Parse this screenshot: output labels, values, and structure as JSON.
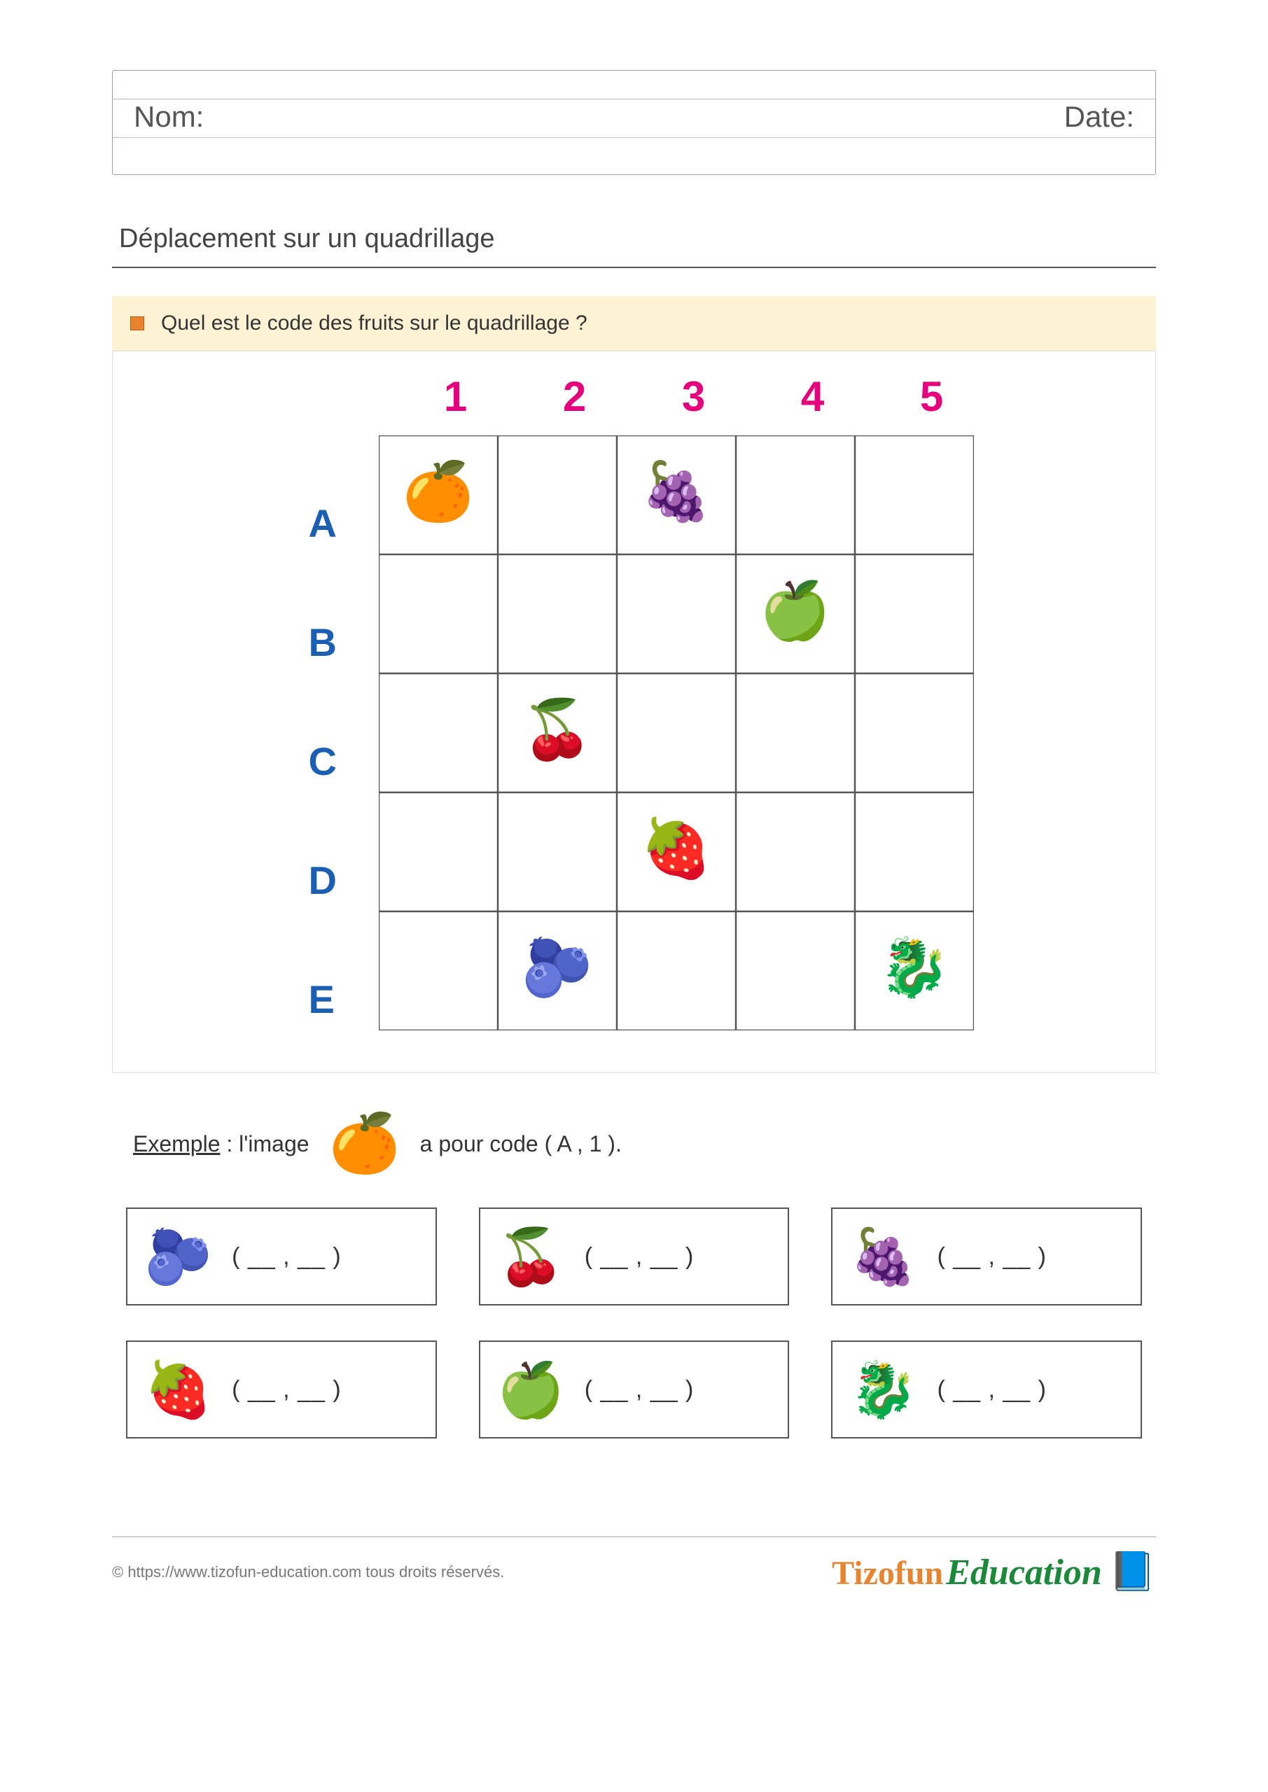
{
  "header": {
    "name_label": "Nom:",
    "date_label": "Date:",
    "border_color": "#9999cc",
    "line_color": "#b8b8dd"
  },
  "section_title": "Déplacement sur un quadrillage",
  "instruction": {
    "bullet_color": "#e8832e",
    "background": "#fdf3d4",
    "text": "Quel est le code des fruits sur le quadrillage ?"
  },
  "grid": {
    "cell_size": 170,
    "cols": 5,
    "rows": 5,
    "col_labels": [
      "1",
      "2",
      "3",
      "4",
      "5"
    ],
    "row_labels": [
      "A",
      "B",
      "C",
      "D",
      "E"
    ],
    "col_label_color": "#e6007e",
    "row_label_color": "#1a5fb4",
    "line_color": "#555555",
    "col_label_fontsize": 60,
    "row_label_fontsize": 56,
    "fruits": [
      {
        "name": "orange",
        "glyph": "🍊",
        "row": "A",
        "col": 1
      },
      {
        "name": "grapes",
        "glyph": "🍇",
        "row": "A",
        "col": 3
      },
      {
        "name": "green-apple",
        "glyph": "🍏",
        "row": "B",
        "col": 4
      },
      {
        "name": "cherries",
        "glyph": "🍒",
        "row": "C",
        "col": 2
      },
      {
        "name": "strawberry",
        "glyph": "🍓",
        "row": "D",
        "col": 3
      },
      {
        "name": "blackberry",
        "glyph": "🫐",
        "row": "E",
        "col": 2
      },
      {
        "name": "dragonfruit",
        "glyph": "🐉",
        "row": "E",
        "col": 5
      }
    ]
  },
  "example": {
    "prefix_bold": "Exemple",
    "prefix_rest": " : l'image",
    "fruit_glyph": "🍊",
    "fruit_name": "orange",
    "suffix": "a pour code (  A  ,  1  )."
  },
  "answers": [
    {
      "fruit_name": "blackberry",
      "glyph": "🫐",
      "blank": "( __ , __ )"
    },
    {
      "fruit_name": "cherries",
      "glyph": "🍒",
      "blank": "( __ , __ )"
    },
    {
      "fruit_name": "grapes",
      "glyph": "🍇",
      "blank": "( __ , __ )"
    },
    {
      "fruit_name": "strawberry",
      "glyph": "🍓",
      "blank": "( __ , __ )"
    },
    {
      "fruit_name": "green-apple",
      "glyph": "🍏",
      "blank": "( __ , __ )"
    },
    {
      "fruit_name": "dragonfruit",
      "glyph": "🐉",
      "blank": "( __ , __ )"
    }
  ],
  "footer": {
    "copyright": "© https://www.tizofun-education.com tous droits réservés.",
    "logo_part1": "Tiz",
    "logo_o": "o",
    "logo_part1b": "fun",
    "logo_part2": "Education",
    "logo_icon": "📘"
  },
  "colors": {
    "text": "#333333",
    "section_underline": "#555555",
    "answer_border": "#555555"
  }
}
